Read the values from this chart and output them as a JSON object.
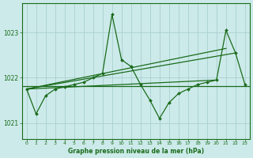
{
  "x": [
    0,
    1,
    2,
    3,
    4,
    5,
    6,
    7,
    8,
    9,
    10,
    11,
    12,
    13,
    14,
    15,
    16,
    17,
    18,
    19,
    20,
    21,
    22,
    23
  ],
  "main_line": [
    1021.75,
    1021.2,
    1021.6,
    1021.75,
    1021.8,
    1021.85,
    1021.9,
    1022.0,
    1022.1,
    1023.4,
    1022.4,
    1022.25,
    1021.85,
    1021.5,
    1021.1,
    1021.45,
    1021.65,
    1021.75,
    1021.85,
    1021.9,
    1021.95,
    1023.05,
    1022.55,
    1021.85
  ],
  "trend1_x": [
    0,
    21
  ],
  "trend1_y": [
    1021.75,
    1022.65
  ],
  "trend2_x": [
    0,
    22
  ],
  "trend2_y": [
    1021.75,
    1022.55
  ],
  "trend3_x": [
    0,
    20
  ],
  "trend3_y": [
    1021.75,
    1021.95
  ],
  "hline_y": 1021.82,
  "ylim": [
    1020.65,
    1023.65
  ],
  "yticks": [
    1021,
    1022,
    1023
  ],
  "xticks": [
    0,
    1,
    2,
    3,
    4,
    5,
    6,
    7,
    8,
    9,
    10,
    11,
    12,
    13,
    14,
    15,
    16,
    17,
    18,
    19,
    20,
    21,
    22,
    23
  ],
  "line_color": "#1a6b1a",
  "bg_color": "#cceaea",
  "grid_color": "#aacfcf",
  "xlabel": "Graphe pression niveau de la mer (hPa)"
}
